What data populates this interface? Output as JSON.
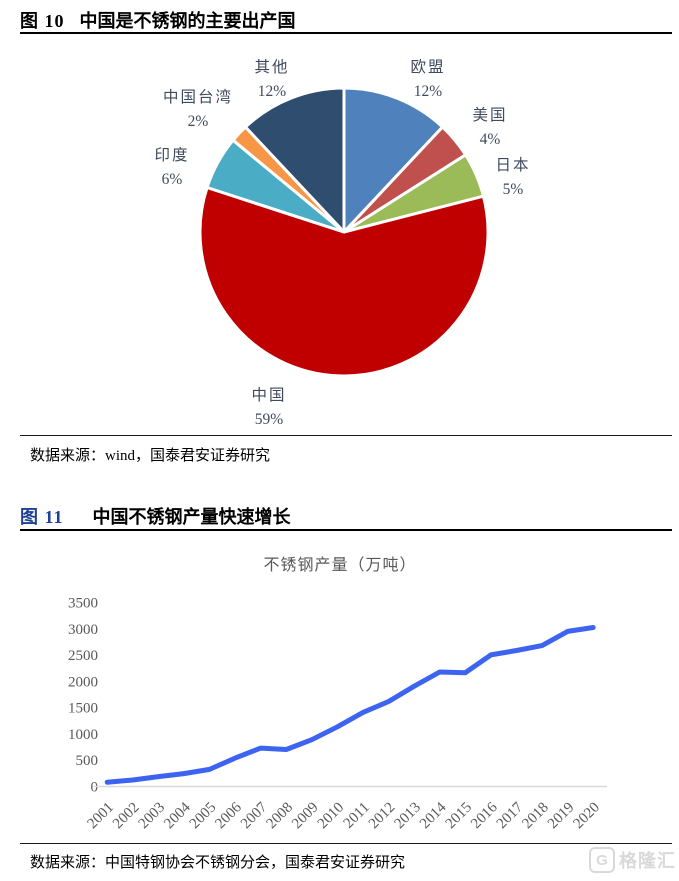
{
  "fig10": {
    "label": "图 10",
    "title": "中国是不锈钢的主要出产国",
    "source": "数据来源：wind，国泰君安证券研究"
  },
  "fig11": {
    "label": "图 11",
    "title": "中国不锈钢产量快速增长",
    "source": "数据来源：中国特钢协会不锈钢分会，国泰君安证券研究"
  },
  "watermark": {
    "logo": "G",
    "text": "格隆汇"
  },
  "colors": {
    "pie_label_text": "#3f4a5e",
    "chart_text": "#595959",
    "axis_line": "#d9d9d9",
    "line_series": "#3d64f1"
  },
  "chart_data": [
    {
      "type": "pie",
      "title": "中国是不锈钢的主要出产国",
      "unit": "%",
      "start_angle_deg": 0,
      "direction": "clockwise",
      "slices": [
        {
          "label": "欧盟",
          "value": 12,
          "color": "#4f81bd"
        },
        {
          "label": "美国",
          "value": 4,
          "color": "#c0504d"
        },
        {
          "label": "日本",
          "value": 5,
          "color": "#9bbb59"
        },
        {
          "label": "中国",
          "value": 59,
          "color": "#c00000"
        },
        {
          "label": "印度",
          "value": 6,
          "color": "#4bacc6"
        },
        {
          "label": "中国台湾",
          "value": 2,
          "color": "#f79646"
        },
        {
          "label": "其他",
          "value": 12,
          "color": "#2e4d6f"
        }
      ]
    },
    {
      "type": "line",
      "title": "不锈钢产量（万吨）",
      "x": [
        2001,
        2002,
        2003,
        2004,
        2005,
        2006,
        2007,
        2008,
        2009,
        2010,
        2011,
        2012,
        2013,
        2014,
        2015,
        2016,
        2017,
        2018,
        2019,
        2020
      ],
      "series": [
        {
          "name": "不锈钢产量",
          "color": "#3d64f1",
          "values": [
            73,
            114,
            178,
            236,
            316,
            530,
            720,
            694,
            880,
            1126,
            1400,
            1608,
            1898,
            2169,
            2156,
            2494,
            2577,
            2671,
            2940,
            3014
          ]
        }
      ],
      "ylim": [
        0,
        3500
      ],
      "ytick_step": 500,
      "yticks": [
        0,
        500,
        1000,
        1500,
        2000,
        2500,
        3000,
        3500
      ],
      "grid": false,
      "legend": "none"
    }
  ]
}
